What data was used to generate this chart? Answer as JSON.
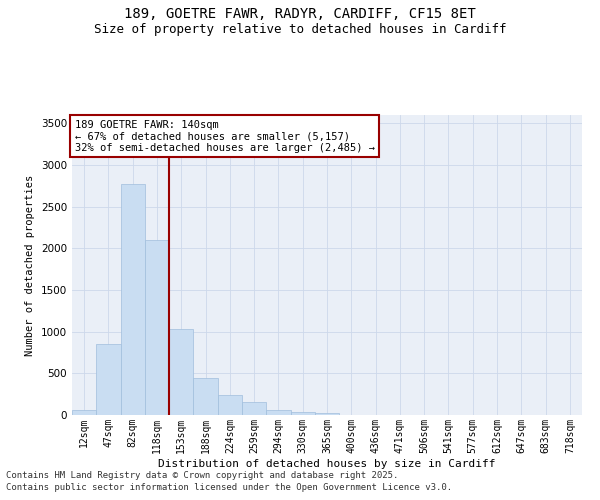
{
  "title_line1": "189, GOETRE FAWR, RADYR, CARDIFF, CF15 8ET",
  "title_line2": "Size of property relative to detached houses in Cardiff",
  "xlabel": "Distribution of detached houses by size in Cardiff",
  "ylabel": "Number of detached properties",
  "categories": [
    "12sqm",
    "47sqm",
    "82sqm",
    "118sqm",
    "153sqm",
    "188sqm",
    "224sqm",
    "259sqm",
    "294sqm",
    "330sqm",
    "365sqm",
    "400sqm",
    "436sqm",
    "471sqm",
    "506sqm",
    "541sqm",
    "577sqm",
    "612sqm",
    "647sqm",
    "683sqm",
    "718sqm"
  ],
  "values": [
    55,
    850,
    2775,
    2100,
    1030,
    450,
    245,
    160,
    65,
    35,
    20,
    0,
    0,
    0,
    0,
    0,
    0,
    0,
    0,
    0,
    0
  ],
  "bar_color": "#c9ddf2",
  "bar_edge_color": "#a0bedd",
  "vline_color": "#990000",
  "annotation_text": "189 GOETRE FAWR: 140sqm\n← 67% of detached houses are smaller (5,157)\n32% of semi-detached houses are larger (2,485) →",
  "annotation_box_color": "#990000",
  "annotation_bg": "#ffffff",
  "ylim": [
    0,
    3600
  ],
  "yticks": [
    0,
    500,
    1000,
    1500,
    2000,
    2500,
    3000,
    3500
  ],
  "grid_color": "#cdd8ea",
  "bg_color": "#eaeff7",
  "footer_line1": "Contains HM Land Registry data © Crown copyright and database right 2025.",
  "footer_line2": "Contains public sector information licensed under the Open Government Licence v3.0.",
  "title_fontsize": 10,
  "subtitle_fontsize": 9,
  "annotation_fontsize": 7.5,
  "footer_fontsize": 6.5,
  "ylabel_fontsize": 7.5,
  "xlabel_fontsize": 8,
  "tick_fontsize": 7,
  "ytick_fontsize": 7.5
}
